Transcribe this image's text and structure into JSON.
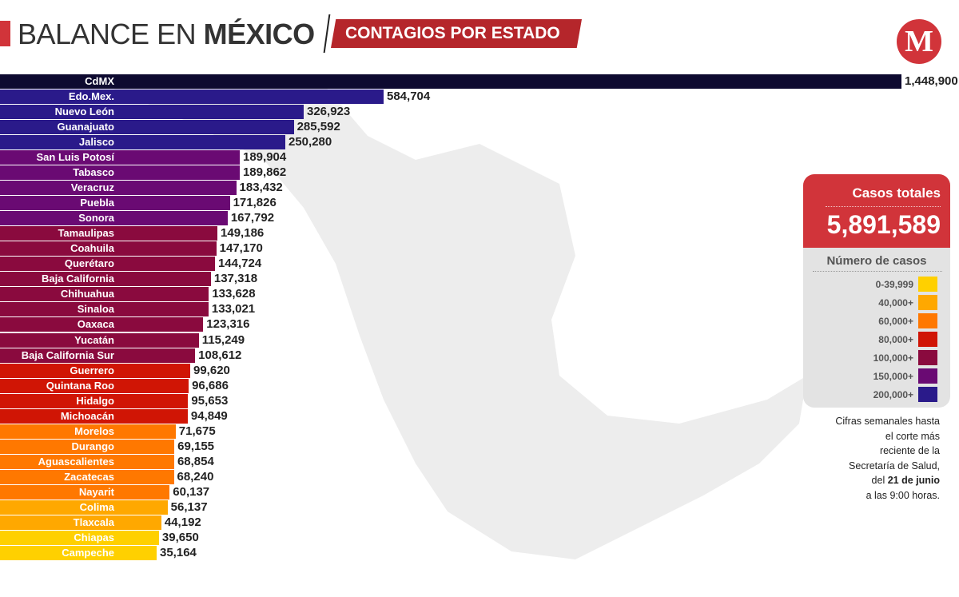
{
  "header": {
    "title_light": "BALANCE EN ",
    "title_bold": "MÉXICO",
    "subtitle": "CONTAGIOS POR ESTADO"
  },
  "logo": {
    "letter": "M"
  },
  "totals": {
    "label": "Casos totales",
    "value": "5,891,589"
  },
  "legend": {
    "title": "Número de casos",
    "items": [
      {
        "label": "0-39,999",
        "color": "#ffd000"
      },
      {
        "label": "40,000+",
        "color": "#ffa800"
      },
      {
        "label": "60,000+",
        "color": "#ff7800"
      },
      {
        "label": "80,000+",
        "color": "#d01505"
      },
      {
        "label": "100,000+",
        "color": "#8a0a3e"
      },
      {
        "label": "150,000+",
        "color": "#6a0a73"
      },
      {
        "label": "200,000+",
        "color": "#2a1a8a"
      }
    ]
  },
  "note": {
    "line1": "Cifras semanales hasta",
    "line2": "el corte más",
    "line3": "reciente de la",
    "line4": "Secretaría de Salud,",
    "line5_pre": "del ",
    "line5_bold": "21  de junio",
    "line6": "a las 9:00 horas."
  },
  "chart_data": {
    "type": "bar",
    "orientation": "horizontal",
    "categories": [
      "CdMX",
      "Edo.Mex.",
      "Nuevo León",
      "Guanajuato",
      "Jalisco",
      "San Luis Potosí",
      "Tabasco",
      "Veracruz",
      "Puebla",
      "Sonora",
      "Tamaulipas",
      "Coahuila",
      "Querétaro",
      "Baja California",
      "Chihuahua",
      "Sinaloa",
      "Oaxaca",
      "Yucatán",
      "Baja California Sur",
      "Guerrero",
      "Quintana Roo",
      "Hidalgo",
      "Michoacán",
      "Morelos",
      "Durango",
      "Aguascalientes",
      "Zacatecas",
      "Nayarit",
      "Colima",
      "Tlaxcala",
      "Chiapas",
      "Campeche"
    ],
    "values": [
      1448900,
      584704,
      326923,
      285592,
      250280,
      189904,
      189862,
      183432,
      171826,
      167792,
      149186,
      147170,
      144724,
      137318,
      133628,
      133021,
      123316,
      115249,
      108612,
      99620,
      96686,
      95653,
      94849,
      71675,
      69155,
      68854,
      68240,
      60137,
      56137,
      44192,
      39650,
      35164
    ],
    "value_labels": [
      "1,448,900",
      "584,704",
      "326,923",
      "285,592",
      "250,280",
      "189,904",
      "189,862",
      "183,432",
      "171,826",
      "167,792",
      "149,186",
      "147,170",
      "144,724",
      "137,318",
      "133,628",
      "133,021",
      "123,316",
      "115,249",
      "108,612",
      "99,620",
      "96,686",
      "95,653",
      "94,849",
      "71,675",
      "69,155",
      "68,854",
      "68,240",
      "60,137",
      "56,137",
      "44,192",
      "39,650",
      "35,164"
    ],
    "top_color": "#0e0a30",
    "legend_placement": "right",
    "grid": false
  }
}
